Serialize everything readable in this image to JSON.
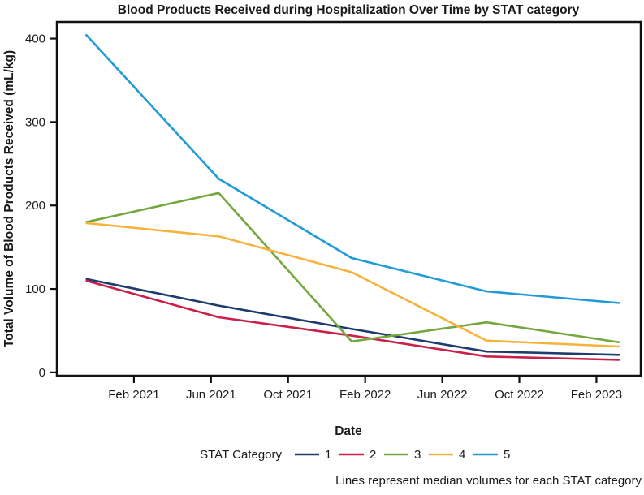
{
  "figure": {
    "title": "Blood Products Received during Hospitalization Over Time by STAT category",
    "y_axis_label": "Total Volume of Blood Products Received (mL/kg)",
    "x_axis_label": "Date",
    "legend_title": "STAT Category",
    "caption": "Lines represent median volumes for each STAT category"
  },
  "colors": {
    "stat1_navy": "#1e3c6e",
    "stat2_crimson": "#ca2048",
    "stat3_green": "#74a73e",
    "stat4_amber": "#f5b33c",
    "stat5_blue": "#1f9bd8",
    "axis": "#111111"
  },
  "chart_data": {
    "type": "line",
    "title": "Blood Products Received during Hospitalization Over Time by STAT category",
    "xlabel": "Date",
    "ylabel": "Total Volume of Blood Products Received (mL/kg)",
    "x_dates_approx": [
      "Nov 2020",
      "Jun 2021",
      "Jan 2022",
      "Aug 2022",
      "Mar 2023"
    ],
    "x_months_from_first": [
      0,
      6.9,
      13.8,
      20.8,
      27.7
    ],
    "series": [
      {
        "name": "1",
        "color_key": "stat1_navy",
        "values": [
          112,
          80,
          52,
          25,
          21
        ]
      },
      {
        "name": "2",
        "color_key": "stat2_crimson",
        "values": [
          110,
          66,
          44,
          19,
          15
        ]
      },
      {
        "name": "3",
        "color_key": "stat3_green",
        "values": [
          180,
          215,
          37,
          60,
          36
        ]
      },
      {
        "name": "4",
        "color_key": "stat4_amber",
        "values": [
          179,
          163,
          120,
          38,
          31
        ]
      },
      {
        "name": "5",
        "color_key": "stat5_blue",
        "values": [
          405,
          232,
          137,
          97,
          83
        ]
      }
    ],
    "x_ticks": [
      {
        "label": "Feb 2021",
        "m": 2.5
      },
      {
        "label": "Jun 2021",
        "m": 6.5
      },
      {
        "label": "Oct 2021",
        "m": 10.5
      },
      {
        "label": "Feb 2022",
        "m": 14.5
      },
      {
        "label": "Jun 2022",
        "m": 18.5
      },
      {
        "label": "Oct 2022",
        "m": 22.5
      },
      {
        "label": "Feb 2023",
        "m": 26.5
      }
    ],
    "y_ticks": [
      0,
      100,
      200,
      300,
      400
    ],
    "xlim_months": [
      -1.5,
      28.8
    ],
    "ylim": [
      -4,
      420
    ],
    "legend_position": "bottom",
    "legend_title": "STAT Category",
    "grid": false,
    "footnote": "Lines represent median volumes for each STAT category"
  }
}
